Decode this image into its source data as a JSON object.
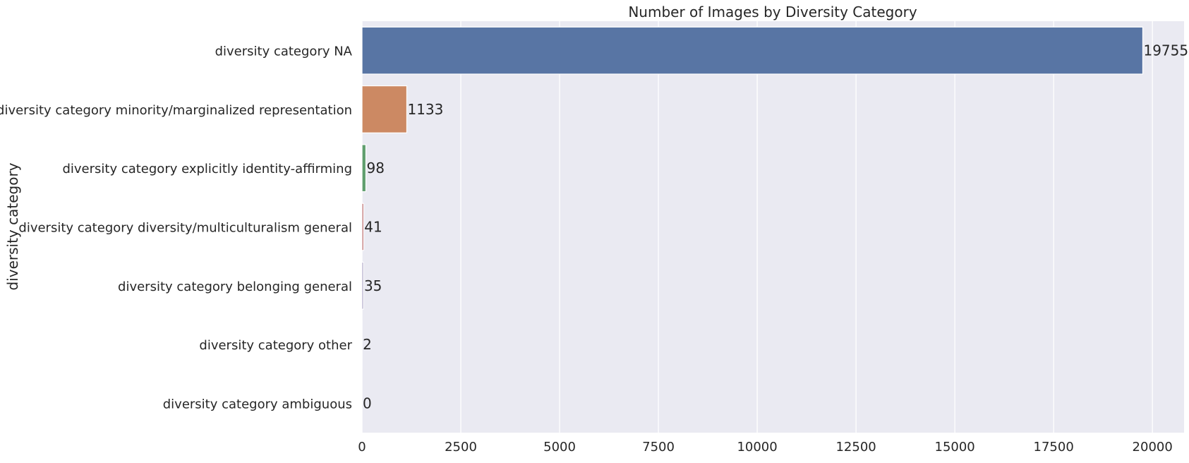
{
  "chart_data": {
    "type": "bar",
    "orientation": "horizontal",
    "title": "Number of Images by Diversity Category",
    "xlabel": "",
    "ylabel": "diversity category",
    "categories": [
      "diversity category NA",
      "diversity category minority/marginalized representation",
      "diversity category explicitly identity-affirming",
      "diversity category diversity/multiculturalism general",
      "diversity category belonging general",
      "diversity category other",
      "diversity category ambiguous"
    ],
    "values": [
      19755,
      1133,
      98,
      41,
      35,
      2,
      0
    ],
    "colors": [
      "#5875a4",
      "#cc8963",
      "#5f9e6e",
      "#b55d60",
      "#857aab",
      "#8d7866",
      "#d095bf"
    ],
    "xlim": [
      0,
      20800
    ],
    "xticks": [
      0,
      2500,
      5000,
      7500,
      10000,
      12500,
      15000,
      17500,
      20000
    ],
    "grid": true,
    "background": "#eaeaf2",
    "grid_color": "#ffffff"
  }
}
